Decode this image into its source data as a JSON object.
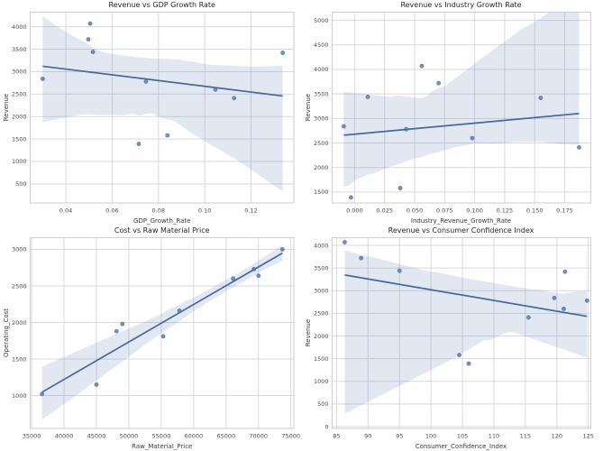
{
  "style": {
    "background": "#ffffff",
    "point_color": "#4c72b0",
    "line_color": "#44689f",
    "band_color": "#4c72b0",
    "band_opacity": 0.16,
    "grid_color": "#d9d9e0",
    "spine_color": "#cdcdd4",
    "title_color": "#262626",
    "tick_color": "#4a4a4a",
    "label_color": "#3a3a3a"
  },
  "chart_data": [
    {
      "type": "scatter",
      "title": "Revenue vs GDP Growth Rate",
      "xlabel": "GDP_Growth_Rate",
      "ylabel": "Revenue",
      "x": [
        0.03,
        0.0497,
        0.0505,
        0.0517,
        0.0715,
        0.0746,
        0.0839,
        0.1046,
        0.1127,
        0.1337
      ],
      "y": [
        2840,
        3720,
        4070,
        3440,
        1390,
        2780,
        1580,
        2600,
        2410,
        3420
      ],
      "xlim": [
        0.0246,
        0.1385
      ],
      "ylim": [
        75,
        4325
      ],
      "xticks": [
        0.04,
        0.06,
        0.08,
        0.1,
        0.12
      ],
      "xtick_labels": [
        "0.04",
        "0.06",
        "0.08",
        "0.10",
        "0.12"
      ],
      "yticks": [
        500,
        1000,
        1500,
        2000,
        2500,
        3000,
        3500,
        4000
      ],
      "ytick_labels": [
        "500",
        "1000",
        "1500",
        "2000",
        "2500",
        "3000",
        "3500",
        "4000"
      ],
      "regression_line": true,
      "ci_level": 95,
      "grid": true,
      "legend": "none"
    },
    {
      "type": "scatter",
      "title": "Revenue vs Industry Growth Rate",
      "xlabel": "Industry_Revenue_Growth_Rate",
      "ylabel": "Revenue",
      "x": [
        -0.009,
        -0.003,
        0.011,
        0.038,
        0.043,
        0.056,
        0.07,
        0.098,
        0.155,
        0.187
      ],
      "y": [
        2840,
        1390,
        3440,
        1580,
        2780,
        4070,
        3720,
        2600,
        3420,
        2410
      ],
      "xlim": [
        -0.0187,
        0.1968
      ],
      "ylim": [
        1278,
        5167
      ],
      "xticks": [
        0.0,
        0.025,
        0.05,
        0.075,
        0.1,
        0.125,
        0.15,
        0.175
      ],
      "xtick_labels": [
        "0.000",
        "0.025",
        "0.050",
        "0.075",
        "0.100",
        "0.125",
        "0.150",
        "0.175"
      ],
      "yticks": [
        1500,
        2000,
        2500,
        3000,
        3500,
        4000,
        4500,
        5000
      ],
      "ytick_labels": [
        "1500",
        "2000",
        "2500",
        "3000",
        "3500",
        "4000",
        "4500",
        "5000"
      ],
      "regression_line": true,
      "ci_level": 95,
      "grid": true,
      "legend": "none"
    },
    {
      "type": "scatter",
      "title": "Cost vs Raw Material Price",
      "xlabel": "Raw_Material_Price",
      "ylabel": "Operating_Cost",
      "x": [
        36600,
        45000,
        48100,
        49000,
        55300,
        57800,
        66100,
        69300,
        70000,
        73700
      ],
      "y": [
        1020,
        1150,
        1880,
        1980,
        1810,
        2160,
        2600,
        2730,
        2640,
        3000
      ],
      "xlim": [
        34780,
        75460
      ],
      "ylim": [
        550,
        3160
      ],
      "xticks": [
        35000,
        40000,
        45000,
        50000,
        55000,
        60000,
        65000,
        70000,
        75000
      ],
      "xtick_labels": [
        "35000",
        "40000",
        "45000",
        "50000",
        "55000",
        "60000",
        "65000",
        "70000",
        "75000"
      ],
      "yticks": [
        1000,
        1500,
        2000,
        2500,
        3000
      ],
      "ytick_labels": [
        "1000",
        "1500",
        "2000",
        "2500",
        "3000"
      ],
      "regression_line": true,
      "ci_level": 95,
      "grid": true,
      "legend": "none"
    },
    {
      "type": "scatter",
      "title": "Revenue vs Consumer Confidence Index",
      "xlabel": "Consumer_Confidence_Index",
      "ylabel": "Revenue",
      "x": [
        86.3,
        88.9,
        95.0,
        104.5,
        106.0,
        115.5,
        119.6,
        121.1,
        121.3,
        124.8
      ],
      "y": [
        4070,
        3720,
        3440,
        1580,
        1390,
        2410,
        2840,
        2600,
        3420,
        2780
      ],
      "xlim": [
        84.3,
        125.4
      ],
      "ylim": [
        -40,
        4170
      ],
      "xticks": [
        85,
        90,
        95,
        100,
        105,
        110,
        115,
        120,
        125
      ],
      "xtick_labels": [
        "85",
        "90",
        "95",
        "100",
        "105",
        "110",
        "115",
        "120",
        "125"
      ],
      "yticks": [
        0,
        500,
        1000,
        1500,
        2000,
        2500,
        3000,
        3500,
        4000
      ],
      "ytick_labels": [
        "0",
        "500",
        "1000",
        "1500",
        "2000",
        "2500",
        "3000",
        "3500",
        "4000"
      ],
      "regression_line": true,
      "ci_level": 95,
      "grid": true,
      "legend": "none"
    }
  ]
}
